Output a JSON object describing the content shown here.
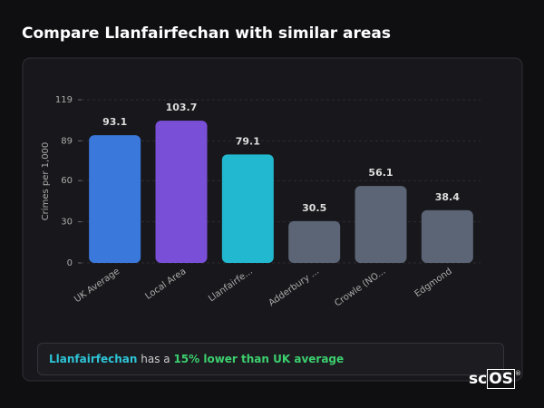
{
  "chart_data": {
    "type": "bar",
    "title": "Compare Llanfairfechan with similar areas",
    "y_label": "Crimes per 1,000",
    "categories": [
      "UK Average",
      "Local Area",
      "Llanfairfe...",
      "Adderbury ...",
      "Crowle (NO...",
      "Edgmond"
    ],
    "values": [
      93.1,
      103.7,
      79.1,
      30.5,
      56.1,
      38.4
    ],
    "colors": [
      "#3b78dc",
      "#7a4fd8",
      "#22b9d0",
      "#5b6576",
      "#5b6576",
      "#5b6576"
    ],
    "ylim": [
      0,
      119
    ],
    "yticks": [
      0,
      30,
      60,
      89,
      119
    ],
    "grid": true
  },
  "footer": {
    "place": "Llanfairfechan",
    "text": "has a",
    "highlight": "15% lower than UK average"
  },
  "logo": {
    "prefix": "sc",
    "boxed": "OS",
    "mark": "®"
  }
}
